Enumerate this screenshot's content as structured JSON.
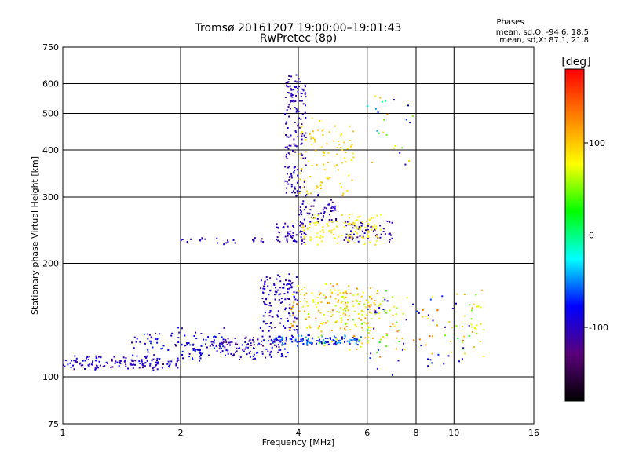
{
  "header": {
    "title_line1": "Tromsø 20161207 19:00:00–19:01:43",
    "title_line2": "RwPretec (8p)"
  },
  "stats": {
    "heading": "Phases",
    "line_o": "mean, sd,O: -94.6, 18.5",
    "line_x": "mean, sd,X:  87.1, 21.8"
  },
  "colorbar": {
    "unit": "[deg]",
    "range": [
      -180,
      180
    ],
    "ticks": [
      {
        "value": 100,
        "label": "100"
      },
      {
        "value": 0,
        "label": "0"
      },
      {
        "value": -100,
        "label": "-100"
      }
    ],
    "colors": [
      "#000000",
      "#5a007a",
      "#0000ff",
      "#00ffff",
      "#00ff00",
      "#ffff00",
      "#ff8000",
      "#ff0000"
    ]
  },
  "chart_data": {
    "type": "scatter",
    "xlabel": "Frequency [MHz]",
    "ylabel": "Stationary phase Virtual Height [km]",
    "x_scale": "log",
    "y_scale": "log",
    "xlim": [
      1,
      16
    ],
    "ylim": [
      75,
      750
    ],
    "grid": true,
    "x_ticks": [
      {
        "value": 1,
        "label": "1"
      },
      {
        "value": 2,
        "label": "2"
      },
      {
        "value": 4,
        "label": "4"
      },
      {
        "value": 6,
        "label": "6"
      },
      {
        "value": 8,
        "label": "8"
      },
      {
        "value": 10,
        "label": "10"
      },
      {
        "value": 16,
        "label": "16"
      }
    ],
    "y_ticks": [
      {
        "value": 75,
        "label": "75"
      },
      {
        "value": 100,
        "label": "100"
      },
      {
        "value": 200,
        "label": "200"
      },
      {
        "value": 300,
        "label": "300"
      },
      {
        "value": 400,
        "label": "400"
      },
      {
        "value": 500,
        "label": "500"
      },
      {
        "value": 600,
        "label": "600"
      },
      {
        "value": 750,
        "label": "750"
      }
    ],
    "clusters": [
      {
        "x": [
          1.0,
          2.0
        ],
        "y": [
          106,
          112
        ],
        "jitter": 0.05,
        "phase": [
          -120,
          -80
        ],
        "count": 140
      },
      {
        "x": [
          1.5,
          2.6
        ],
        "y": [
          116,
          132
        ],
        "jitter": 0.06,
        "phase": [
          -110,
          -60
        ],
        "count": 70
      },
      {
        "x": [
          2.0,
          3.8
        ],
        "y": [
          112,
          126
        ],
        "jitter": 0.04,
        "phase": [
          -110,
          -75
        ],
        "count": 120
      },
      {
        "x": [
          3.3,
          5.8
        ],
        "y": [
          122,
          128
        ],
        "jitter": 0.03,
        "phase": [
          -100,
          -40
        ],
        "count": 120
      },
      {
        "x": [
          2.5,
          3.6
        ],
        "y": [
          118,
          126
        ],
        "jitter": 0.03,
        "phase": [
          -140,
          -110
        ],
        "count": 35
      },
      {
        "x": [
          3.2,
          4.0
        ],
        "y": [
          130,
          185
        ],
        "jitter": 0.06,
        "phase": [
          -120,
          -80
        ],
        "count": 130
      },
      {
        "x": [
          3.5,
          4.2
        ],
        "y": [
          225,
          255
        ],
        "jitter": 0.03,
        "phase": [
          -120,
          -90
        ],
        "count": 60
      },
      {
        "x": [
          2.0,
          3.3
        ],
        "y": [
          225,
          232
        ],
        "jitter": 0.02,
        "phase": [
          -110,
          -90
        ],
        "count": 25
      },
      {
        "x": [
          3.7,
          4.2
        ],
        "y": [
          300,
          630
        ],
        "jitter": 0.05,
        "phase": [
          -115,
          -90
        ],
        "count": 160
      },
      {
        "x": [
          4.0,
          5.0
        ],
        "y": [
          255,
          300
        ],
        "jitter": 0.04,
        "phase": [
          -120,
          -90
        ],
        "count": 60
      },
      {
        "x": [
          5.2,
          7.0
        ],
        "y": [
          230,
          260
        ],
        "jitter": 0.03,
        "phase": [
          -120,
          -90
        ],
        "count": 60
      },
      {
        "x": [
          4.1,
          6.5
        ],
        "y": [
          225,
          270
        ],
        "jitter": 0.03,
        "phase": [
          75,
          95
        ],
        "count": 110
      },
      {
        "x": [
          4.0,
          5.6
        ],
        "y": [
          300,
          480
        ],
        "jitter": 0.05,
        "phase": [
          80,
          110
        ],
        "count": 90
      },
      {
        "x": [
          3.8,
          6.5
        ],
        "y": [
          135,
          175
        ],
        "jitter": 0.06,
        "phase": [
          60,
          130
        ],
        "count": 150
      },
      {
        "x": [
          4.5,
          7.2
        ],
        "y": [
          118,
          160
        ],
        "jitter": 0.06,
        "phase": [
          40,
          120
        ],
        "count": 70
      },
      {
        "x": [
          6.0,
          12.0
        ],
        "y": [
          115,
          165
        ],
        "jitter": 0.08,
        "phase": [
          20,
          140
        ],
        "count": 80
      },
      {
        "x": [
          6.0,
          11.0
        ],
        "y": [
          105,
          160
        ],
        "jitter": 0.1,
        "phase": [
          -110,
          -60
        ],
        "count": 40
      },
      {
        "x": [
          6.0,
          8.0
        ],
        "y": [
          350,
          550
        ],
        "jitter": 0.08,
        "phase": [
          -100,
          120
        ],
        "count": 25
      }
    ]
  }
}
